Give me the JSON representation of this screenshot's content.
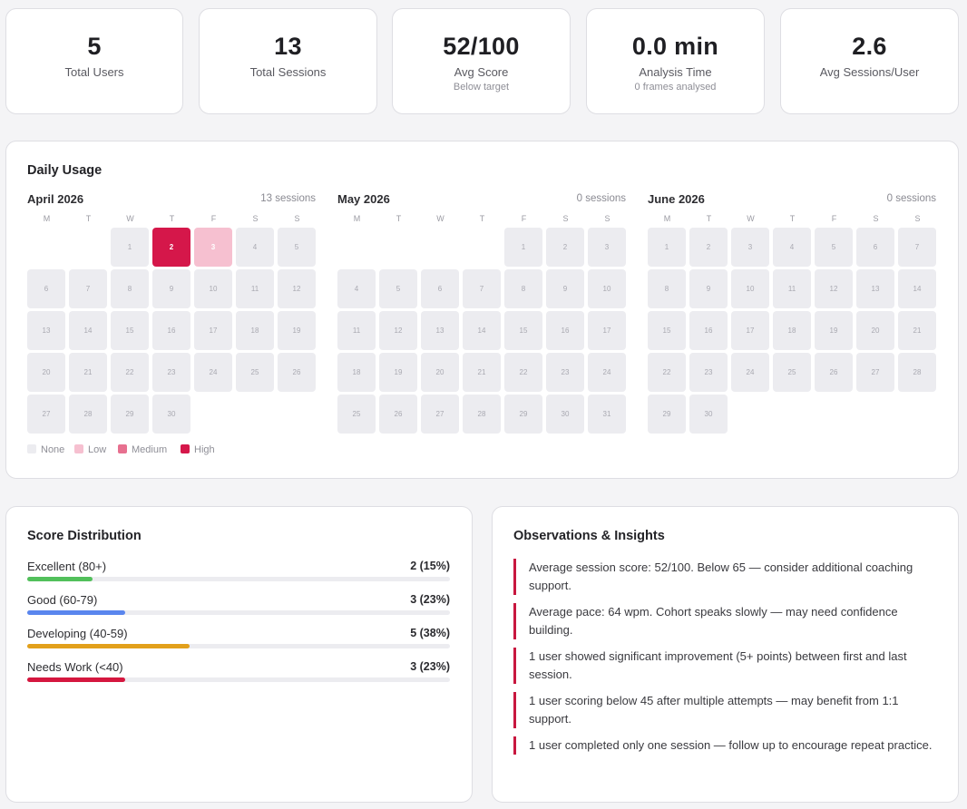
{
  "stats": [
    {
      "value": "5",
      "label": "Total Users",
      "sub": ""
    },
    {
      "value": "13",
      "label": "Total Sessions",
      "sub": ""
    },
    {
      "value": "52/100",
      "label": "Avg Score",
      "sub": "Below target"
    },
    {
      "value": "0.0 min",
      "label": "Analysis Time",
      "sub": "0 frames analysed"
    },
    {
      "value": "2.6",
      "label": "Avg Sessions/User",
      "sub": ""
    }
  ],
  "daily_usage": {
    "title": "Daily Usage",
    "weekday_labels": [
      "M",
      "T",
      "W",
      "T",
      "F",
      "S",
      "S"
    ],
    "months": [
      {
        "name": "April 2026",
        "sessions_label": "13 sessions",
        "start_offset": 2,
        "days": 30,
        "levels": {
          "2": "high",
          "3": "low"
        }
      },
      {
        "name": "May 2026",
        "sessions_label": "0 sessions",
        "start_offset": 4,
        "days": 31,
        "levels": {}
      },
      {
        "name": "June 2026",
        "sessions_label": "0 sessions",
        "start_offset": 0,
        "days": 30,
        "levels": {}
      }
    ],
    "legend": [
      {
        "label": "None",
        "color": "#ececf0"
      },
      {
        "label": "Low",
        "color": "#f6c0d0"
      },
      {
        "label": "Medium",
        "color": "#e7708f"
      },
      {
        "label": "High",
        "color": "#d5174a"
      }
    ]
  },
  "score_distribution": {
    "title": "Score Distribution",
    "rows": [
      {
        "label": "Excellent (80+)",
        "value": "2 (15%)",
        "fraction": 0.154,
        "color": "#52c05b"
      },
      {
        "label": "Good (60-79)",
        "value": "3 (23%)",
        "fraction": 0.231,
        "color": "#5a86ee"
      },
      {
        "label": "Developing (40-59)",
        "value": "5 (38%)",
        "fraction": 0.385,
        "color": "#e2a01b"
      },
      {
        "label": "Needs Work (<40)",
        "value": "3 (23%)",
        "fraction": 0.231,
        "color": "#d5173f"
      }
    ]
  },
  "observations": {
    "title": "Observations & Insights",
    "items": [
      "Average session score: 52/100. Below 65 — consider additional coaching support.",
      "Average pace: 64 wpm. Cohort speaks slowly — may need confidence building.",
      "1 user showed significant improvement (5+ points) between first and last session.",
      "1 user scoring below 45 after multiple attempts — may benefit from 1:1 support.",
      "1 user completed only one session — follow up to encourage repeat practice."
    ]
  }
}
